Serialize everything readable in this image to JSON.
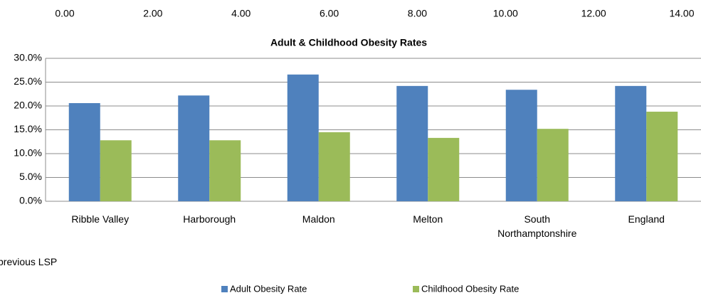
{
  "fragment": {
    "xlim": [
      0,
      14
    ],
    "xticks": [
      {
        "value": 0,
        "label": "0.00"
      },
      {
        "value": 2,
        "label": "2.00"
      },
      {
        "value": 4,
        "label": "4.00"
      },
      {
        "value": 6,
        "label": "6.00"
      },
      {
        "value": 8,
        "label": "8.00"
      },
      {
        "value": 10,
        "label": "10.00"
      },
      {
        "value": 12,
        "label": "12.00"
      },
      {
        "value": 14,
        "label": "14.00"
      }
    ]
  },
  "chart_data": {
    "type": "bar",
    "title": "Adult & Childhood  Obesity Rates",
    "categories": [
      "Ribble Valley",
      "Harborough",
      "Maldon",
      "Melton",
      "South Northamptonshire",
      "England"
    ],
    "series": [
      {
        "name": "Adult Obesity Rate",
        "color": "#4f81bd",
        "values": [
          20.6,
          22.2,
          26.6,
          24.2,
          23.4,
          24.2
        ]
      },
      {
        "name": "Childhood Obesity Rate",
        "color": "#9bbb59",
        "values": [
          12.8,
          12.8,
          14.5,
          13.3,
          15.2,
          18.8
        ]
      }
    ],
    "ylim": [
      0,
      30
    ],
    "yticks": [
      {
        "value": 0,
        "label": "0.0%"
      },
      {
        "value": 5,
        "label": "5.0%"
      },
      {
        "value": 10,
        "label": "10.0%"
      },
      {
        "value": 15,
        "label": "15.0%"
      },
      {
        "value": 20,
        "label": "20.0%"
      },
      {
        "value": 25,
        "label": "25.0%"
      },
      {
        "value": 30,
        "label": "30.0%"
      }
    ],
    "grid": true,
    "legend": "bottom"
  },
  "note": "previous LSP"
}
